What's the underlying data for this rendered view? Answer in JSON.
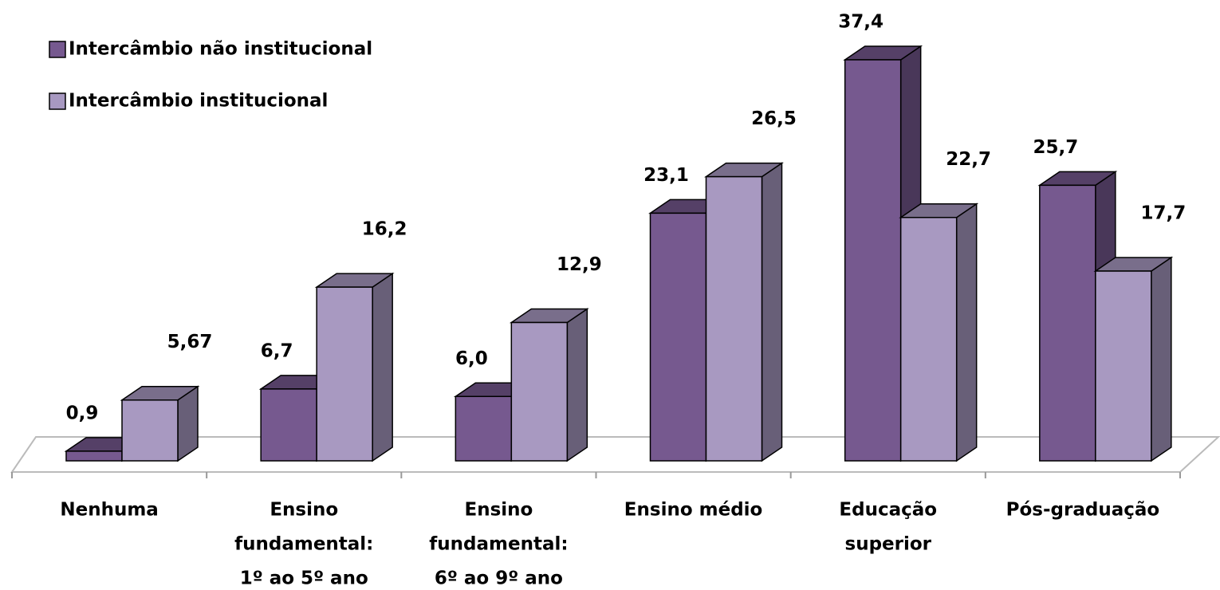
{
  "chart_data": {
    "type": "bar3d",
    "categories": [
      [
        "Nenhuma"
      ],
      [
        "Ensino",
        "fundamental:",
        "1º ao 5º ano"
      ],
      [
        "Ensino",
        "fundamental:",
        "6º ao 9º ano"
      ],
      [
        "Ensino médio"
      ],
      [
        "Educação",
        "superior"
      ],
      [
        "Pós-graduação"
      ]
    ],
    "series": [
      {
        "name": "Intercâmbio não institucional",
        "color": "#76598f",
        "values": [
          0.9,
          6.7,
          6.0,
          23.1,
          37.4,
          25.7
        ],
        "value_labels": [
          "0,9",
          "6,7",
          "6,0",
          "23,1",
          "37,4",
          "25,7"
        ]
      },
      {
        "name": "Intercâmbio institucional",
        "color": "#a899c1",
        "values": [
          5.67,
          16.2,
          12.9,
          26.5,
          22.7,
          17.7
        ],
        "value_labels": [
          "5,67",
          "16,2",
          "12,9",
          "26,5",
          "22,7",
          "17,7"
        ]
      }
    ],
    "legend": "upper left"
  }
}
